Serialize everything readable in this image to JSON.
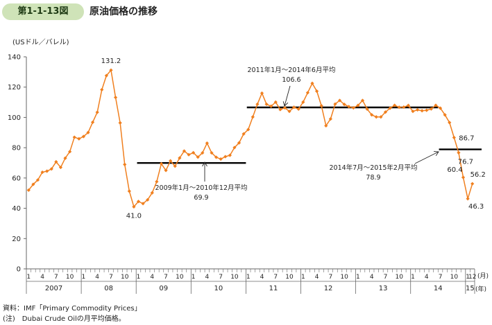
{
  "figure": {
    "number": "第1-1-13図",
    "title": "原油価格の推移"
  },
  "colors": {
    "line": "#f07f1e",
    "avg": "#000000",
    "axis": "#666666",
    "badge": "#cfe3b8"
  },
  "chart_data": {
    "type": "line",
    "ylabel": "(USドル／バレル)",
    "ylim": [
      0,
      140
    ],
    "yticks": [
      "0",
      "20",
      "40",
      "60",
      "80",
      "100",
      "120",
      "140"
    ],
    "month_ticks": [
      "1",
      "4",
      "7",
      "10"
    ],
    "month_ticks_2015": [
      "1",
      "12"
    ],
    "year_labels": [
      "2007",
      "08",
      "09",
      "10",
      "11",
      "12",
      "13",
      "14",
      "15"
    ],
    "unit_month": "(月)",
    "unit_year": "(年)",
    "grid": false,
    "series": [
      {
        "values": [
          52.0,
          55.8,
          58.7,
          63.8,
          64.5,
          66.0,
          70.7,
          67.0,
          73.1,
          77.4,
          86.9,
          85.9,
          87.4,
          90.0,
          96.8,
          103.4,
          118.3,
          127.6,
          131.2,
          113.2,
          96.4,
          68.9,
          51.3,
          41.0,
          44.5,
          43.1,
          45.6,
          50.2,
          57.6,
          69.4,
          65.0,
          71.3,
          67.8,
          73.2,
          77.8,
          75.4,
          76.7,
          73.8,
          76.6,
          83.0,
          76.6,
          73.7,
          72.5,
          74.1,
          75.0,
          80.1,
          83.2,
          89.1,
          92.0,
          100.3,
          108.7,
          116.0,
          108.7,
          107.4,
          110.1,
          105.2,
          106.3,
          104.0,
          106.7,
          105.5,
          110.1,
          116.3,
          122.5,
          117.3,
          107.7,
          94.5,
          99.0,
          108.8,
          111.2,
          108.6,
          107.1,
          106.3,
          107.9,
          111.2,
          105.5,
          101.7,
          100.3,
          100.3,
          103.5,
          106.1,
          108.0,
          106.7,
          106.8,
          107.9,
          104.0,
          105.0,
          104.4,
          104.7,
          105.6,
          108.0,
          106.1,
          101.7,
          96.6,
          86.7,
          76.7,
          60.4,
          46.3,
          56.2
        ]
      }
    ],
    "averages": [
      {
        "label": "2009年1月～2010年12月平均",
        "value_label": "69.9",
        "value": 69.9,
        "start_index": 24,
        "end_index": 47
      },
      {
        "label": "2011年1月～2014年6月平均",
        "value_label": "106.6",
        "value": 106.6,
        "start_index": 48,
        "end_index": 89
      },
      {
        "label": "2014年7月～2015年2月平均",
        "value_label": "78.9",
        "value": 78.9,
        "start_index": 90,
        "end_index": 97
      }
    ],
    "point_labels": [
      {
        "index": 18,
        "text": "131.2"
      },
      {
        "index": 23,
        "text": "41.0"
      },
      {
        "index": 93,
        "text": "86.7"
      },
      {
        "index": 94,
        "text": "76.7"
      },
      {
        "index": 95,
        "text": "60.4"
      },
      {
        "index": 96,
        "text": "46.3"
      },
      {
        "index": 97,
        "text": "56.2"
      }
    ]
  },
  "notes": {
    "source": "資料：IMF「Primary Commodity Prices」",
    "note": "(注)　Dubai Crude Oilの月平均価格。"
  }
}
